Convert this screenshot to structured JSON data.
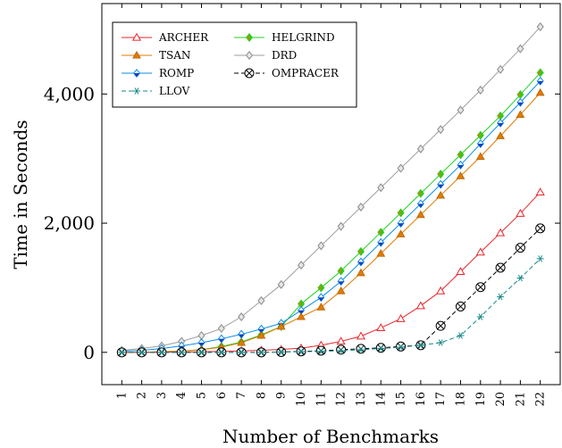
{
  "chart_data": {
    "type": "line",
    "xlabel": "Number of Benchmarks",
    "ylabel": "Time in Seconds",
    "xlim": [
      0,
      23
    ],
    "ylim": [
      -500,
      5400
    ],
    "yticks": [
      0,
      2000,
      4000
    ],
    "ytick_labels": [
      "0",
      "2,000",
      "4,000"
    ],
    "x": [
      1,
      2,
      3,
      4,
      5,
      6,
      7,
      8,
      9,
      10,
      11,
      12,
      13,
      14,
      15,
      16,
      17,
      18,
      19,
      20,
      21,
      22
    ],
    "x_tick_labels": [
      "1",
      "2",
      "3",
      "4",
      "5",
      "6",
      "7",
      "8",
      "9",
      "10",
      "11",
      "12",
      "13",
      "14",
      "15",
      "16",
      "17",
      "18",
      "19",
      "20",
      "21",
      "22"
    ],
    "grid": false,
    "legend_position": "top-left",
    "series": [
      {
        "name": "ARCHER",
        "color": "#e8262b",
        "marker": "triangle-open",
        "dashed": false,
        "values": [
          0,
          0,
          2,
          5,
          10,
          15,
          22,
          32,
          45,
          65,
          110,
          170,
          250,
          380,
          520,
          720,
          950,
          1250,
          1550,
          1850,
          2150,
          2480
        ]
      },
      {
        "name": "TSAN",
        "color": "#e07b00",
        "marker": "triangle-filled",
        "dashed": false,
        "values": [
          0,
          0,
          10,
          20,
          40,
          80,
          150,
          260,
          400,
          550,
          700,
          950,
          1230,
          1530,
          1830,
          2130,
          2430,
          2730,
          3030,
          3350,
          3680,
          4020
        ]
      },
      {
        "name": "ROMP",
        "color": "#0a8fe8",
        "marker": "diamond-blue",
        "dashed": false,
        "values": [
          20,
          30,
          60,
          100,
          150,
          210,
          280,
          360,
          450,
          650,
          850,
          1100,
          1400,
          1700,
          2000,
          2300,
          2600,
          2900,
          3230,
          3550,
          3870,
          4200
        ]
      },
      {
        "name": "LLOV",
        "color": "#1a8a8a",
        "marker": "asterisk",
        "dashed": true,
        "values": [
          0,
          0,
          0,
          0,
          0,
          0,
          0,
          0,
          5,
          10,
          15,
          25,
          40,
          60,
          80,
          110,
          150,
          260,
          550,
          860,
          1150,
          1450
        ]
      },
      {
        "name": "HELGRIND",
        "color": "#1fd11f",
        "marker": "diamond-half",
        "dashed": false,
        "values": [
          0,
          0,
          10,
          20,
          40,
          90,
          160,
          270,
          400,
          750,
          1000,
          1260,
          1560,
          1860,
          2160,
          2460,
          2760,
          3060,
          3360,
          3660,
          3990,
          4330
        ]
      },
      {
        "name": "DRD",
        "color": "#9e9e9e",
        "marker": "diamond-gray",
        "dashed": false,
        "values": [
          30,
          60,
          100,
          170,
          260,
          370,
          550,
          800,
          1050,
          1350,
          1650,
          1950,
          2250,
          2550,
          2850,
          3150,
          3450,
          3750,
          4060,
          4380,
          4700,
          5040
        ]
      },
      {
        "name": "OMPRACER",
        "color": "#000000",
        "marker": "circle-x",
        "dashed": true,
        "values": [
          0,
          0,
          0,
          0,
          0,
          0,
          0,
          0,
          5,
          15,
          25,
          40,
          55,
          70,
          90,
          110,
          410,
          710,
          1010,
          1310,
          1620,
          1920
        ]
      }
    ]
  }
}
